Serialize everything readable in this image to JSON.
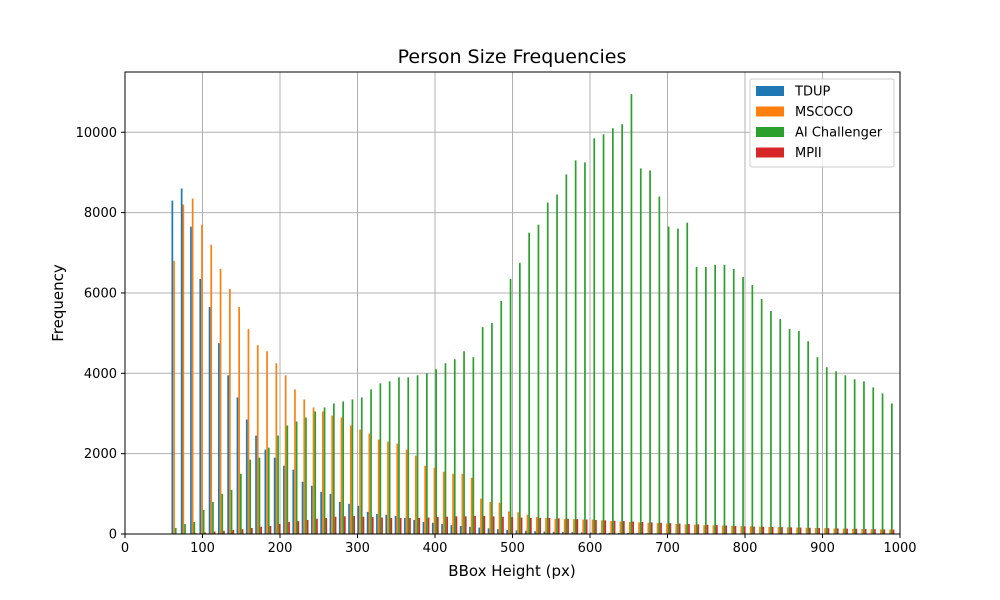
{
  "chart_data": {
    "type": "bar",
    "title": "Person Size Frequencies",
    "xlabel": "BBox Height (px)",
    "ylabel": "Frequency",
    "xlim": [
      0,
      1000
    ],
    "ylim": [
      0,
      11500
    ],
    "xticks": [
      0,
      100,
      200,
      300,
      400,
      500,
      600,
      700,
      800,
      900,
      1000
    ],
    "yticks": [
      0,
      2000,
      4000,
      6000,
      8000,
      10000
    ],
    "grid": true,
    "legend_position": "top-right",
    "x": [
      60,
      72,
      84,
      96,
      108,
      120,
      132,
      144,
      156,
      168,
      180,
      192,
      204,
      216,
      228,
      240,
      252,
      264,
      276,
      288,
      300,
      312,
      324,
      336,
      348,
      360,
      372,
      384,
      396,
      408,
      420,
      432,
      444,
      456,
      468,
      480,
      492,
      504,
      516,
      528,
      540,
      552,
      564,
      576,
      588,
      600,
      612,
      624,
      636,
      648,
      660,
      672,
      684,
      696,
      708,
      720,
      732,
      744,
      756,
      768,
      780,
      792,
      804,
      816,
      828,
      840,
      852,
      864,
      876,
      888,
      900,
      912,
      924,
      936,
      948,
      960,
      972,
      984,
      996
    ],
    "series": [
      {
        "name": "TDUP",
        "color": "#1f77b4",
        "values": [
          8300,
          8600,
          7650,
          6350,
          5650,
          4750,
          3950,
          3400,
          2850,
          2450,
          2100,
          1900,
          1700,
          1600,
          1300,
          1200,
          1050,
          1000,
          800,
          750,
          700,
          550,
          500,
          480,
          450,
          400,
          350,
          300,
          280,
          250,
          220,
          200,
          180,
          160,
          140,
          120,
          100,
          90,
          80,
          70,
          60,
          55,
          50,
          45,
          40,
          35,
          30,
          28,
          26,
          24,
          22,
          20,
          18,
          16,
          15,
          14,
          13,
          12,
          11,
          10,
          10,
          9,
          9,
          8,
          8,
          7,
          7,
          6,
          6,
          5,
          5,
          5,
          4,
          4,
          4,
          3,
          3,
          3,
          3
        ]
      },
      {
        "name": "MSCOCO",
        "color": "#ff7f0e",
        "values": [
          6800,
          8200,
          8350,
          7700,
          7200,
          6600,
          6100,
          5650,
          5100,
          4700,
          4550,
          4250,
          3950,
          3600,
          3350,
          3150,
          3050,
          2950,
          2900,
          2700,
          2600,
          2500,
          2350,
          2300,
          2250,
          2100,
          1950,
          1700,
          1650,
          1550,
          1500,
          1500,
          1400,
          880,
          800,
          780,
          560,
          540,
          480,
          420,
          400,
          380,
          370,
          370,
          360,
          360,
          340,
          320,
          310,
          300,
          290,
          280,
          270,
          260,
          250,
          240,
          230,
          220,
          215,
          210,
          205,
          200,
          190,
          180,
          175,
          170,
          165,
          160,
          155,
          150,
          145,
          140,
          135,
          130,
          125,
          120,
          115,
          110,
          105
        ]
      },
      {
        "name": "AI Challenger",
        "color": "#2ca02c",
        "values": [
          150,
          250,
          300,
          600,
          800,
          1000,
          1100,
          1500,
          1850,
          1900,
          2150,
          2450,
          2700,
          2800,
          2900,
          3050,
          3150,
          3250,
          3300,
          3350,
          3400,
          3600,
          3750,
          3800,
          3900,
          3900,
          3950,
          4000,
          4100,
          4250,
          4350,
          4550,
          4400,
          5150,
          5250,
          5800,
          6350,
          6750,
          7500,
          7700,
          8250,
          8450,
          8950,
          9300,
          9250,
          9850,
          9950,
          10100,
          10200,
          10950,
          9100,
          9050,
          8400,
          7650,
          7600,
          7750,
          6650,
          6650,
          6700,
          6700,
          6600,
          6400,
          6200,
          5850,
          5550,
          5350,
          5100,
          5050,
          4800,
          4400,
          4150,
          4050,
          3950,
          3850,
          3800,
          3650,
          3500,
          3250,
          3200
        ]
      },
      {
        "name": "MPII",
        "color": "#d62728",
        "values": [
          5,
          10,
          20,
          40,
          60,
          80,
          100,
          120,
          150,
          180,
          200,
          250,
          300,
          320,
          350,
          380,
          400,
          430,
          440,
          450,
          430,
          420,
          410,
          400,
          400,
          400,
          400,
          410,
          420,
          430,
          440,
          440,
          450,
          450,
          440,
          430,
          420,
          410,
          400,
          400,
          400,
          390,
          380,
          370,
          360,
          350,
          340,
          330,
          320,
          310,
          300,
          290,
          280,
          270,
          260,
          250,
          240,
          230,
          220,
          210,
          200,
          190,
          185,
          180,
          175,
          170,
          165,
          160,
          155,
          150,
          145,
          140,
          135,
          130,
          125,
          120,
          115,
          110,
          105
        ]
      }
    ]
  }
}
